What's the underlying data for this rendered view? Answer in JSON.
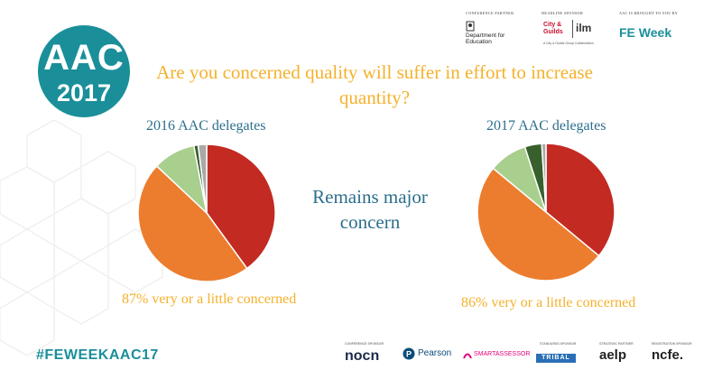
{
  "logo": {
    "line1": "AAC",
    "line2": "2017"
  },
  "sponsors": {
    "conference_partner": {
      "caption": "CONFERENCE PARTNER",
      "name": "Department for Education"
    },
    "headline_sponsor": {
      "caption": "HEADLINE SPONSOR",
      "name1": "City & Guilds",
      "name2": "ilm",
      "tagline": "A City & Guilds Group Collaboration"
    },
    "brought_by": {
      "caption": "AAC IS BROUGHT TO YOU BY",
      "name": "FE Week"
    }
  },
  "slide": {
    "title": "Are you concerned quality will suffer in effort to increase quantity?",
    "center_note": "Remains major concern"
  },
  "chart_data": [
    {
      "type": "pie",
      "title": "2016 AAC delegates",
      "annotation": "87% very or a little concerned",
      "slices": [
        {
          "value": 40,
          "color": "#c22a22"
        },
        {
          "value": 47,
          "color": "#ec7d2e"
        },
        {
          "value": 10,
          "color": "#a8cf8e"
        },
        {
          "value": 1,
          "color": "#37602c"
        },
        {
          "value": 2,
          "color": "#a9a9a9"
        }
      ]
    },
    {
      "type": "pie",
      "title": "2017 AAC delegates",
      "annotation": "86% very or a little concerned",
      "slices": [
        {
          "value": 36,
          "color": "#c22a22"
        },
        {
          "value": 50,
          "color": "#ec7d2e"
        },
        {
          "value": 9,
          "color": "#a8cf8e"
        },
        {
          "value": 4,
          "color": "#37602c"
        },
        {
          "value": 1,
          "color": "#a9a9a9"
        }
      ]
    }
  ],
  "footer": {
    "hashtag": "#FEWEEKAAC17",
    "sponsors": [
      {
        "caption": "CONFERENCE SPONSOR",
        "name": "nocn"
      },
      {
        "caption": "",
        "name": "Pearson"
      },
      {
        "caption": "",
        "name": "SMARTASSESSOR"
      },
      {
        "caption": "STANDARDS SPONSOR",
        "name": "TRIBAL"
      },
      {
        "caption": "STRATEGIC PARTNER",
        "name": "aelp"
      },
      {
        "caption": "REGISTRATION SPONSOR",
        "name": "ncfe."
      }
    ]
  }
}
